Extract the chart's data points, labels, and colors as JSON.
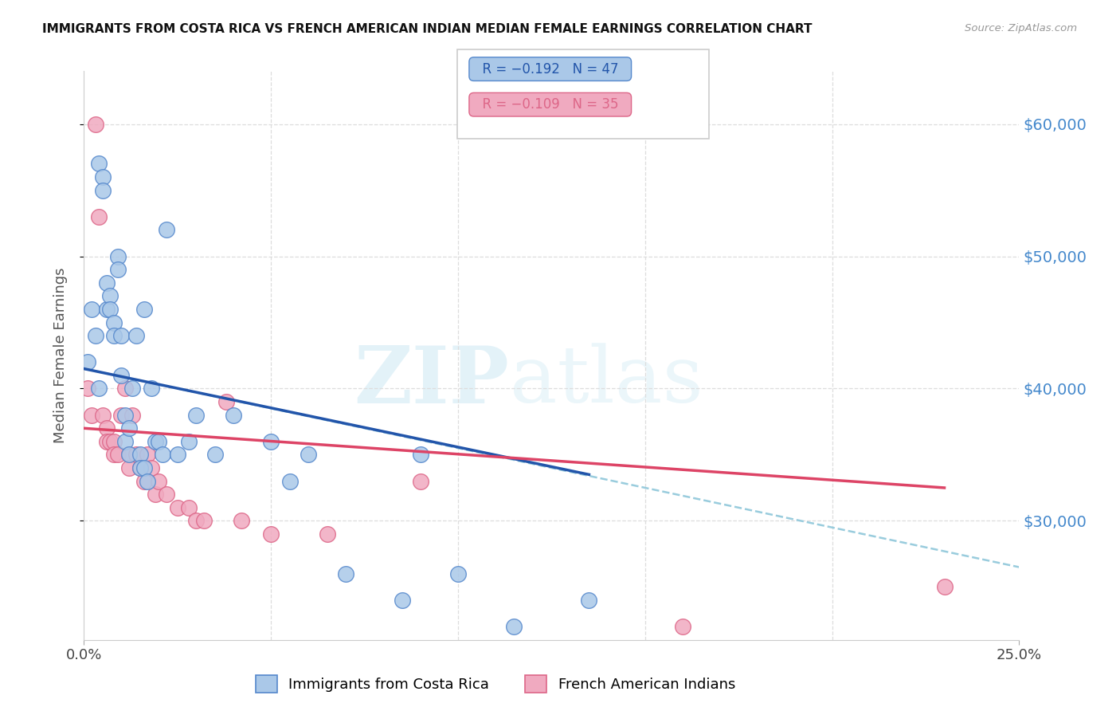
{
  "title": "IMMIGRANTS FROM COSTA RICA VS FRENCH AMERICAN INDIAN MEDIAN FEMALE EARNINGS CORRELATION CHART",
  "source": "Source: ZipAtlas.com",
  "ylabel": "Median Female Earnings",
  "right_yticks": [
    "$60,000",
    "$50,000",
    "$40,000",
    "$30,000"
  ],
  "right_ytick_vals": [
    60000,
    50000,
    40000,
    30000
  ],
  "legend_blue_r": "R = −0.192",
  "legend_blue_n": "N = 47",
  "legend_pink_r": "R = −0.109",
  "legend_pink_n": "N = 35",
  "legend_blue_label": "Immigrants from Costa Rica",
  "legend_pink_label": "French American Indians",
  "watermark_zip": "ZIP",
  "watermark_atlas": "atlas",
  "blue_color": "#aac8e8",
  "blue_edge_color": "#5588cc",
  "pink_color": "#f0aac0",
  "pink_edge_color": "#dd6688",
  "blue_line_color": "#2255aa",
  "pink_line_color": "#dd4466",
  "dash_line_color": "#99ccdd",
  "blue_x": [
    0.001,
    0.002,
    0.003,
    0.004,
    0.004,
    0.005,
    0.005,
    0.006,
    0.006,
    0.007,
    0.007,
    0.008,
    0.008,
    0.009,
    0.009,
    0.01,
    0.01,
    0.011,
    0.011,
    0.012,
    0.012,
    0.013,
    0.014,
    0.015,
    0.015,
    0.016,
    0.016,
    0.017,
    0.018,
    0.019,
    0.02,
    0.021,
    0.022,
    0.025,
    0.028,
    0.03,
    0.035,
    0.04,
    0.05,
    0.055,
    0.06,
    0.07,
    0.085,
    0.09,
    0.1,
    0.115,
    0.135
  ],
  "blue_y": [
    42000,
    46000,
    44000,
    57000,
    40000,
    56000,
    55000,
    46000,
    48000,
    47000,
    46000,
    45000,
    44000,
    50000,
    49000,
    44000,
    41000,
    38000,
    36000,
    37000,
    35000,
    40000,
    44000,
    35000,
    34000,
    46000,
    34000,
    33000,
    40000,
    36000,
    36000,
    35000,
    52000,
    35000,
    36000,
    38000,
    35000,
    38000,
    36000,
    33000,
    35000,
    26000,
    24000,
    35000,
    26000,
    22000,
    24000
  ],
  "pink_x": [
    0.001,
    0.002,
    0.003,
    0.004,
    0.005,
    0.006,
    0.006,
    0.007,
    0.008,
    0.008,
    0.009,
    0.01,
    0.011,
    0.012,
    0.012,
    0.013,
    0.014,
    0.015,
    0.016,
    0.017,
    0.018,
    0.019,
    0.02,
    0.022,
    0.025,
    0.028,
    0.03,
    0.032,
    0.038,
    0.042,
    0.05,
    0.065,
    0.09,
    0.16,
    0.23
  ],
  "pink_y": [
    40000,
    38000,
    60000,
    53000,
    38000,
    37000,
    36000,
    36000,
    36000,
    35000,
    35000,
    38000,
    40000,
    35000,
    34000,
    38000,
    35000,
    34000,
    33000,
    35000,
    34000,
    32000,
    33000,
    32000,
    31000,
    31000,
    30000,
    30000,
    39000,
    30000,
    29000,
    29000,
    33000,
    22000,
    25000
  ],
  "blue_line_x0": 0.0,
  "blue_line_y0": 41500,
  "blue_line_x1": 0.135,
  "blue_line_y1": 33500,
  "pink_line_x0": 0.0,
  "pink_line_y0": 37000,
  "pink_line_x1": 0.23,
  "pink_line_y1": 32500,
  "dash_line_x0": 0.0,
  "dash_line_y0": 41500,
  "dash_line_x1": 0.25,
  "dash_line_y1": 26500,
  "xlim": [
    0.0,
    0.25
  ],
  "ylim": [
    21000,
    64000
  ],
  "grid_yticks": [
    60000,
    50000,
    40000,
    30000
  ],
  "grid_xticks": [
    0.05,
    0.1,
    0.15,
    0.2
  ],
  "background": "#ffffff",
  "grid_color": "#dddddd"
}
